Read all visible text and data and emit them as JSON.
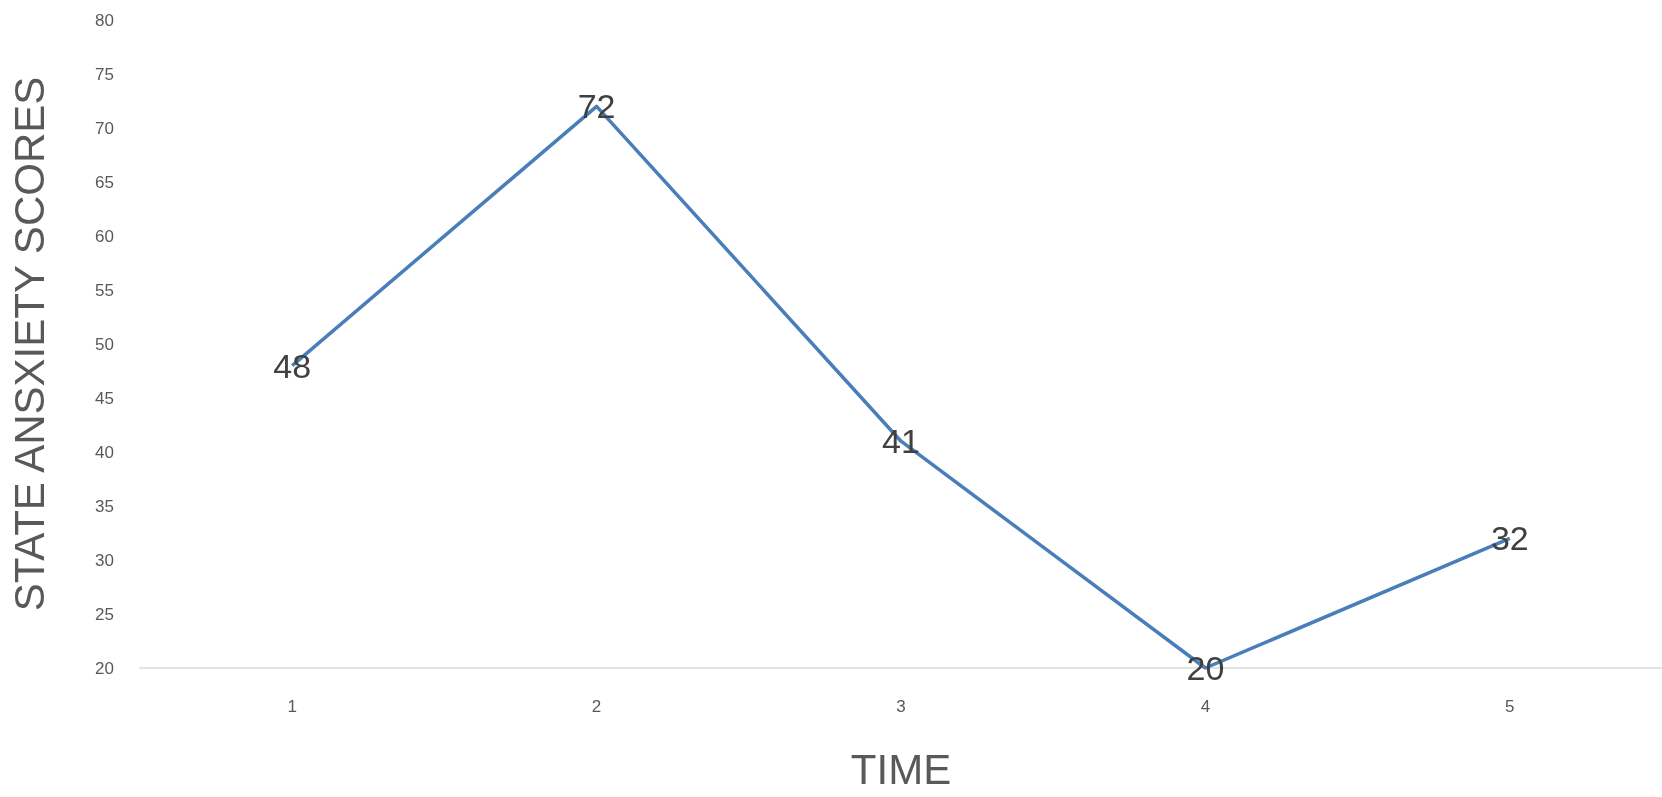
{
  "chart_data": {
    "type": "line",
    "xlabel": "TIME",
    "ylabel": "STATE ANSXIETY SCORES",
    "categories": [
      "1",
      "2",
      "3",
      "4",
      "5"
    ],
    "series": [
      {
        "color": "#4a7ebb",
        "values": [
          48,
          72,
          41,
          20,
          32
        ]
      }
    ],
    "ylim": [
      20,
      80
    ],
    "yticks": [
      20,
      25,
      30,
      35,
      40,
      45,
      50,
      55,
      60,
      65,
      70,
      75,
      80
    ],
    "grid": false,
    "marker": "none",
    "line_style": "solid",
    "data_labels": true
  }
}
